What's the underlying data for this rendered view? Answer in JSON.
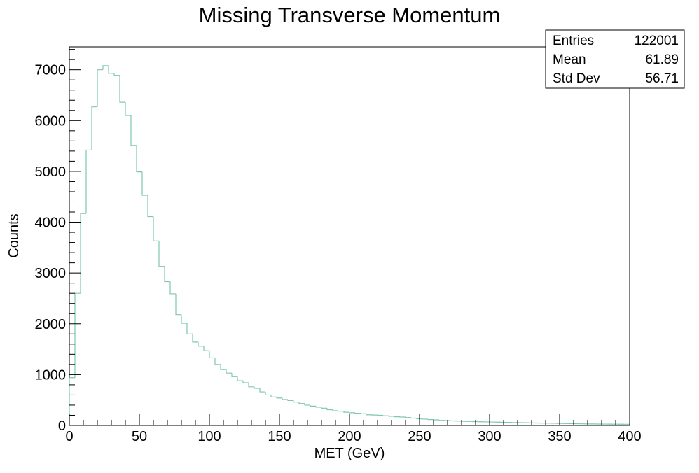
{
  "chart_data": {
    "type": "bar",
    "title": "Missing Transverse Momentum",
    "xlabel": "MET (GeV)",
    "ylabel": "Counts",
    "xlim": [
      0,
      400
    ],
    "ylim": [
      0,
      7450
    ],
    "bin_width": 4,
    "x_ticks": [
      0,
      50,
      100,
      150,
      200,
      250,
      300,
      350,
      400
    ],
    "y_ticks": [
      0,
      1000,
      2000,
      3000,
      4000,
      5000,
      6000,
      7000
    ],
    "grid": false,
    "legend": "none",
    "line_color": "#7fc7af",
    "values": [
      940,
      2600,
      4170,
      5420,
      6270,
      7000,
      7080,
      6930,
      6890,
      6360,
      6100,
      5510,
      4990,
      4530,
      4110,
      3630,
      3130,
      2830,
      2590,
      2180,
      2010,
      1800,
      1640,
      1560,
      1470,
      1330,
      1200,
      1100,
      1030,
      960,
      880,
      840,
      760,
      730,
      660,
      600,
      560,
      540,
      510,
      490,
      460,
      430,
      400,
      380,
      360,
      340,
      310,
      290,
      280,
      260,
      250,
      240,
      230,
      210,
      205,
      200,
      190,
      180,
      170,
      165,
      155,
      145,
      130,
      125,
      115,
      110,
      100,
      95,
      90,
      85,
      80,
      78,
      75,
      72,
      70,
      68,
      65,
      62,
      60,
      58,
      55,
      53,
      50,
      48,
      46,
      44,
      42,
      40,
      38,
      36,
      34,
      32,
      30,
      29,
      28,
      27,
      26,
      25,
      24,
      23
    ],
    "stats": [
      {
        "label": "Entries",
        "value": "122001"
      },
      {
        "label": "Mean",
        "value": "61.89"
      },
      {
        "label": "Std Dev",
        "value": "56.71"
      }
    ]
  }
}
